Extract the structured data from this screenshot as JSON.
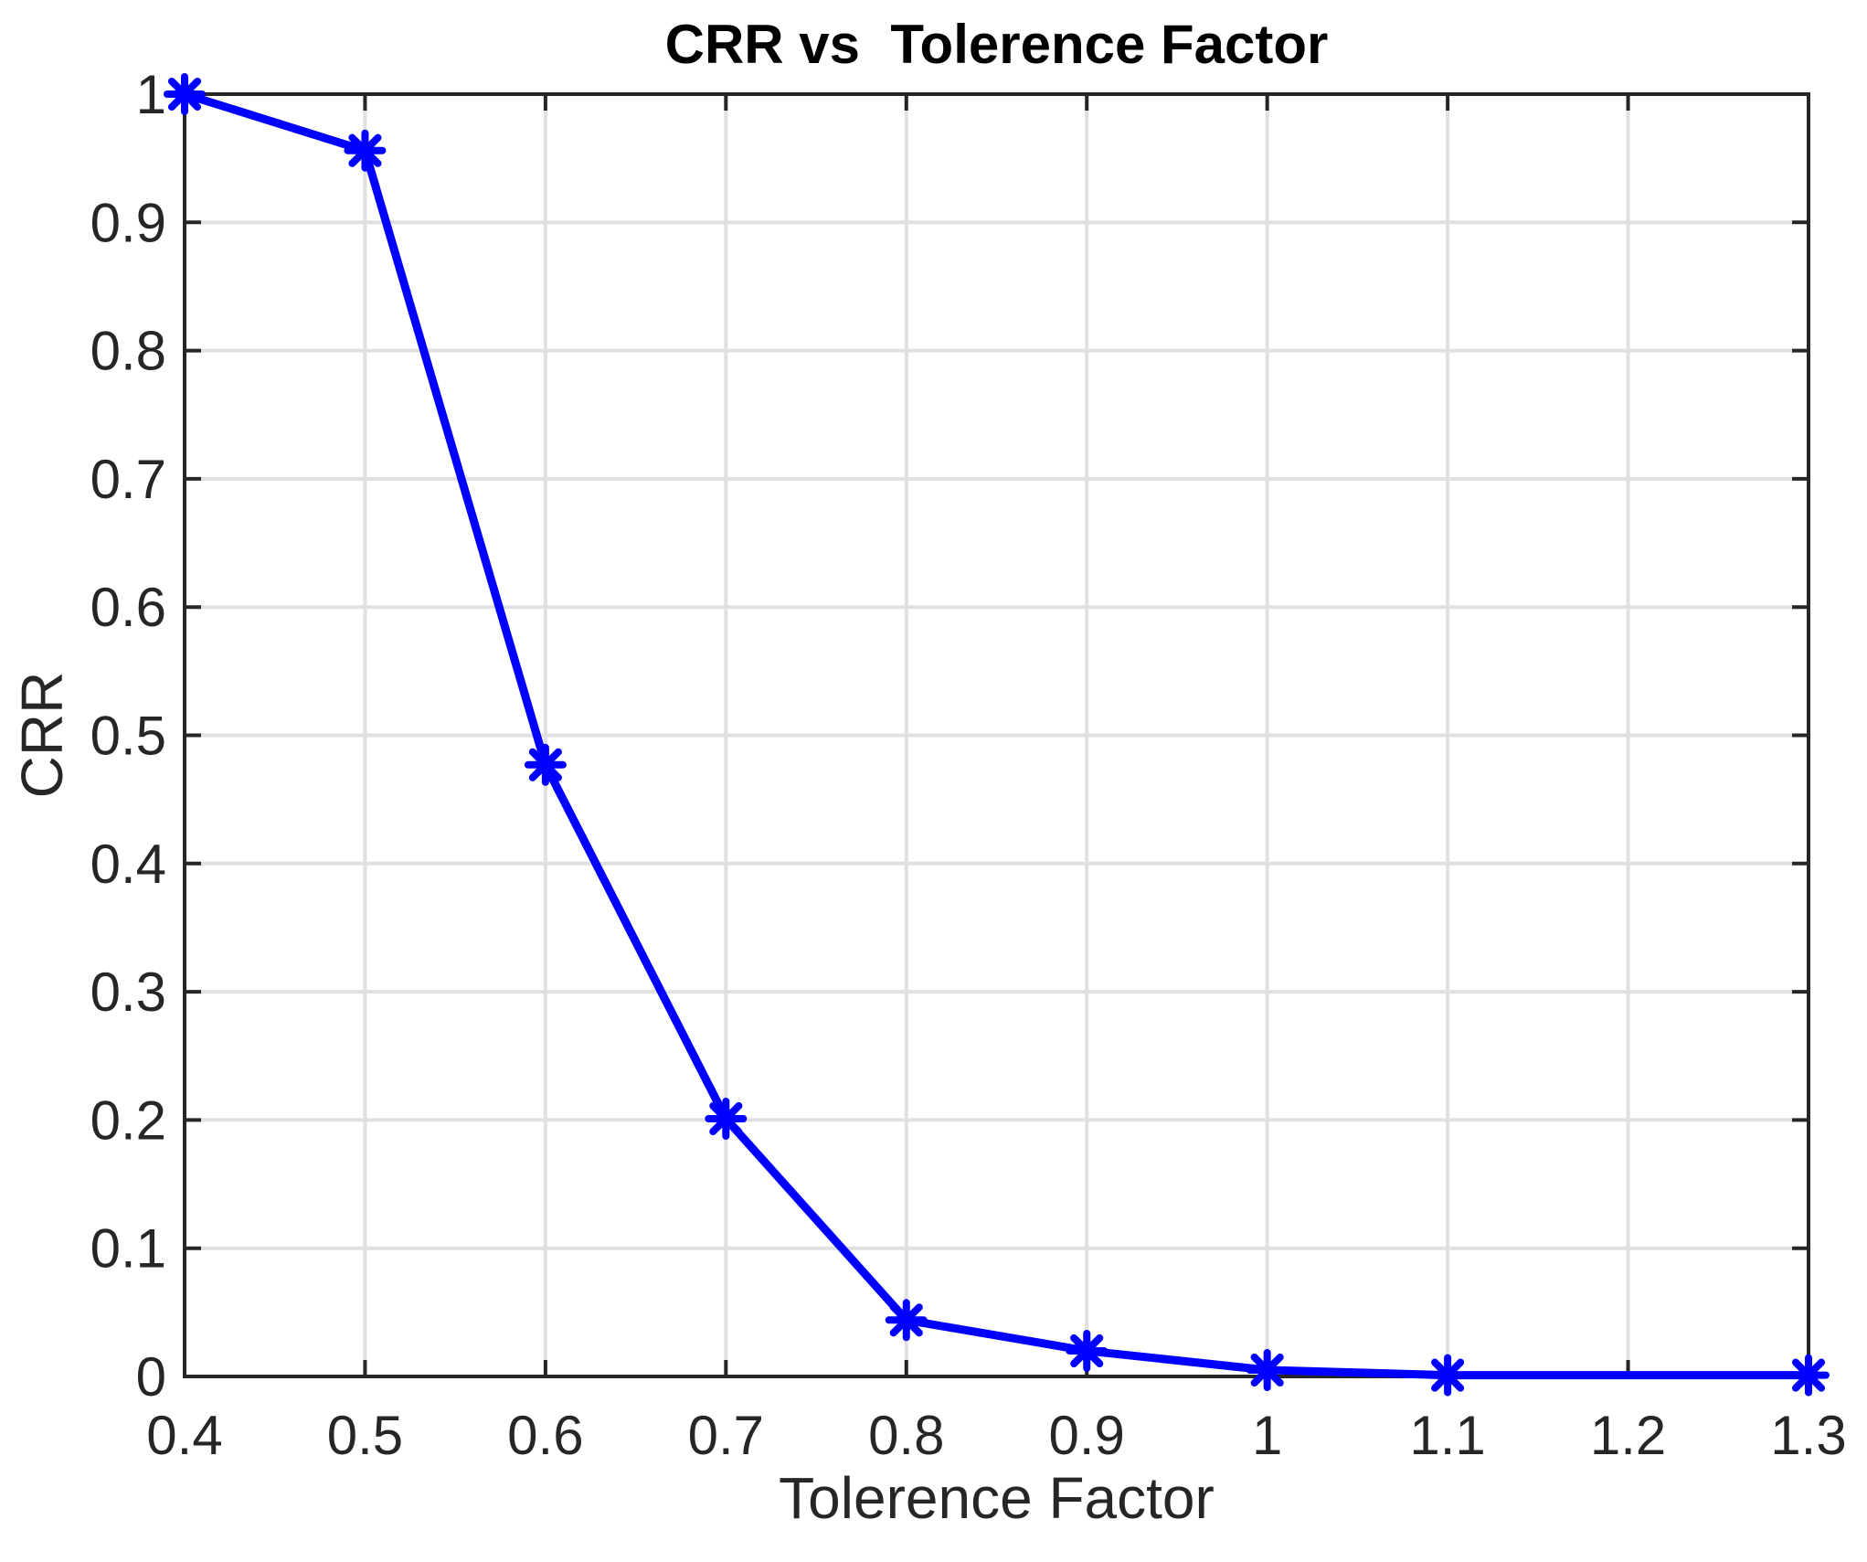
{
  "chart_data": {
    "type": "line",
    "title": "CRR vs  Tolerence Factor",
    "xlabel": "Tolerence Factor",
    "ylabel": "CRR",
    "x": [
      0.4,
      0.5,
      0.6,
      0.7,
      0.8,
      0.9,
      1.0,
      1.1,
      1.3
    ],
    "y": [
      1.0,
      0.956,
      0.477,
      0.201,
      0.044,
      0.02,
      0.005,
      0.001,
      0.001
    ],
    "series_name": "CRR",
    "xlim": [
      0.4,
      1.3
    ],
    "ylim": [
      0,
      1
    ],
    "x_ticks": [
      0.4,
      0.5,
      0.6,
      0.7,
      0.8,
      0.9,
      1.0,
      1.1,
      1.2,
      1.3
    ],
    "x_tick_labels": [
      "0.4",
      "0.5",
      "0.6",
      "0.7",
      "0.8",
      "0.9",
      "1",
      "1.1",
      "1.2",
      "1.3"
    ],
    "y_ticks": [
      0,
      0.1,
      0.2,
      0.3,
      0.4,
      0.5,
      0.6,
      0.7,
      0.8,
      0.9,
      1.0
    ],
    "y_tick_labels": [
      "0",
      "0.1",
      "0.2",
      "0.3",
      "0.4",
      "0.5",
      "0.6",
      "0.7",
      "0.8",
      "0.9",
      "1"
    ],
    "grid": true,
    "legend_position": "none",
    "marker": "asterisk",
    "style": {
      "line_color": "#0000FF",
      "axis_color": "#262626",
      "tick_label_color": "#262626",
      "grid_color": "#E0E0E0",
      "title_color": "#000000",
      "background_color": "#FFFFFF"
    }
  }
}
